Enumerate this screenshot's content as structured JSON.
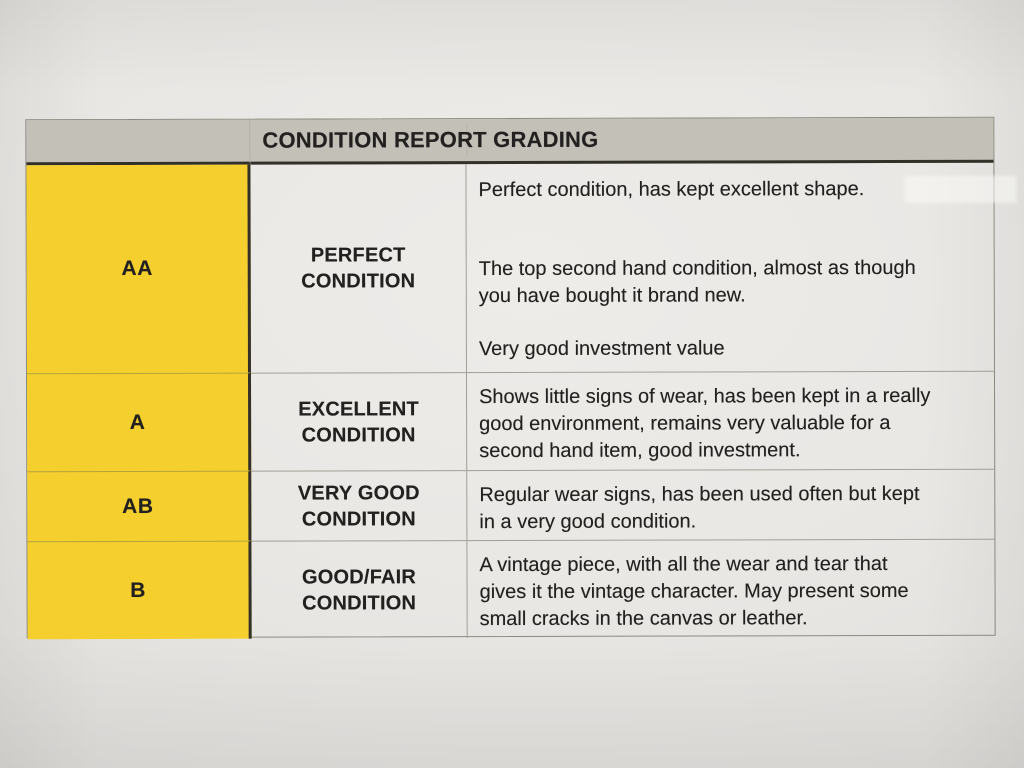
{
  "colors": {
    "paper": "#e8e6e3",
    "header_bg": "#c3c0b8",
    "grade_bg": "#f4cf2d",
    "border_dark": "#33302a",
    "border_light": "#a19e96",
    "text": "#232120"
  },
  "table": {
    "title": "CONDITION REPORT GRADING",
    "columns": [
      "grade",
      "condition",
      "description"
    ],
    "rows": [
      {
        "grade": "AA",
        "condition_lines": [
          "PERFECT",
          "CONDITION"
        ],
        "paragraphs": [
          [
            "Perfect condition, has kept excellent shape."
          ],
          [
            "The top second hand condition, almost as though",
            "you have bought it brand new."
          ],
          [
            "Very good investment value"
          ]
        ]
      },
      {
        "grade": "A",
        "condition_lines": [
          "EXCELLENT",
          "CONDITION"
        ],
        "paragraphs": [
          [
            "Shows little signs of wear, has been kept in a really",
            "good environment, remains very valuable for a",
            "second hand item, good investment."
          ]
        ]
      },
      {
        "grade": "AB",
        "condition_lines": [
          "VERY GOOD",
          "CONDITION"
        ],
        "paragraphs": [
          [
            "Regular wear signs, has been used often but kept",
            "in a very good condition."
          ]
        ]
      },
      {
        "grade": "B",
        "condition_lines": [
          "GOOD/FAIR",
          "CONDITION"
        ],
        "paragraphs": [
          [
            "A vintage piece, with all the wear and tear that",
            "gives it the vintage character. May present some",
            "small cracks in the canvas or leather."
          ]
        ]
      }
    ]
  }
}
